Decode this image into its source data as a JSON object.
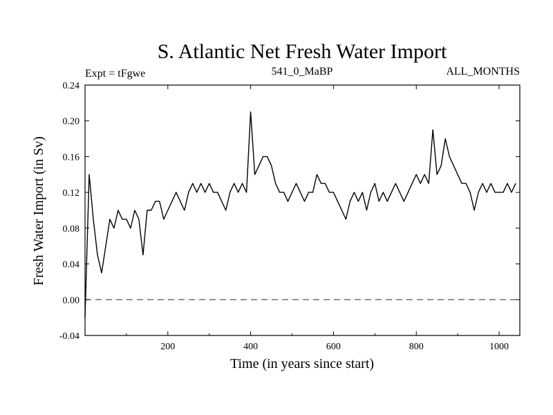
{
  "chart_data": {
    "type": "line",
    "title": "S. Atlantic Net Fresh Water Import",
    "subtitle_left": "Expt = tFgwe",
    "subtitle_center": "541_0_MaBP",
    "subtitle_right": "ALL_MONTHS",
    "xlabel": "Time (in years since start)",
    "ylabel": "Fresh Water Import (in Sv)",
    "xlim": [
      0,
      1050
    ],
    "ylim": [
      -0.04,
      0.24
    ],
    "xticks": [
      200,
      400,
      600,
      800,
      1000
    ],
    "xtick_labels": [
      "200",
      "400",
      "600",
      "800",
      "1000"
    ],
    "yticks": [
      -0.04,
      0.0,
      0.04,
      0.08,
      0.12,
      0.16,
      0.2,
      0.24
    ],
    "ytick_labels": [
      "-0.04",
      "0.00",
      "0.04",
      "0.08",
      "0.12",
      "0.16",
      "0.20",
      "0.24"
    ],
    "zero_line": {
      "y": 0.0,
      "style": "dashed",
      "color": "#555555"
    },
    "series_style": {
      "color": "#000000"
    },
    "series": [
      {
        "name": "Net fresh water import",
        "x_step": 10,
        "x_start": 0,
        "values": [
          -0.02,
          0.14,
          0.09,
          0.05,
          0.03,
          0.06,
          0.09,
          0.08,
          0.1,
          0.09,
          0.09,
          0.08,
          0.1,
          0.09,
          0.05,
          0.1,
          0.1,
          0.11,
          0.11,
          0.09,
          0.1,
          0.11,
          0.12,
          0.11,
          0.1,
          0.12,
          0.13,
          0.12,
          0.13,
          0.12,
          0.13,
          0.12,
          0.12,
          0.11,
          0.1,
          0.12,
          0.13,
          0.12,
          0.13,
          0.12,
          0.21,
          0.14,
          0.15,
          0.16,
          0.16,
          0.15,
          0.13,
          0.12,
          0.12,
          0.11,
          0.12,
          0.13,
          0.12,
          0.11,
          0.12,
          0.12,
          0.14,
          0.13,
          0.13,
          0.12,
          0.12,
          0.11,
          0.1,
          0.09,
          0.11,
          0.12,
          0.11,
          0.12,
          0.1,
          0.12,
          0.13,
          0.11,
          0.12,
          0.11,
          0.12,
          0.13,
          0.12,
          0.11,
          0.12,
          0.13,
          0.14,
          0.13,
          0.14,
          0.13,
          0.19,
          0.14,
          0.15,
          0.18,
          0.16,
          0.15,
          0.14,
          0.13,
          0.13,
          0.12,
          0.1,
          0.12,
          0.13,
          0.12,
          0.13,
          0.12,
          0.12,
          0.12,
          0.13,
          0.12,
          0.13
        ]
      }
    ]
  }
}
